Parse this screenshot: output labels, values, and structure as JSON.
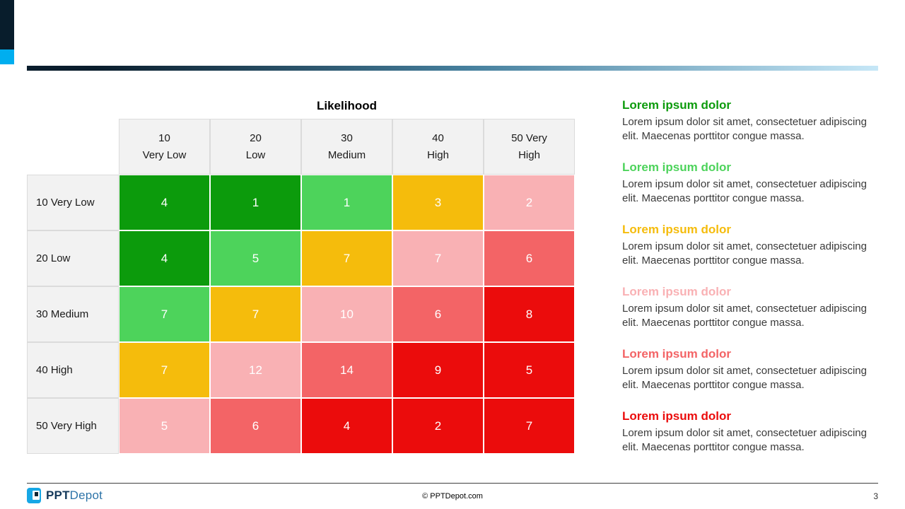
{
  "chart_data": {
    "type": "heatmap",
    "title": "Likelihood",
    "x_categories": [
      "10 Very Low",
      "20 Low",
      "30 Medium",
      "40 High",
      "50 Very High"
    ],
    "y_categories": [
      "10 Very Low",
      "20 Low",
      "30 Medium",
      "40 High",
      "50 Very High"
    ],
    "column_header_lines": [
      [
        "10",
        "Very Low"
      ],
      [
        "20",
        "Low"
      ],
      [
        "30",
        "Medium"
      ],
      [
        "40",
        "High"
      ],
      [
        "50 Very",
        "High"
      ]
    ],
    "values": [
      [
        4,
        1,
        1,
        3,
        2
      ],
      [
        4,
        5,
        7,
        7,
        6
      ],
      [
        7,
        7,
        10,
        6,
        8
      ],
      [
        7,
        12,
        14,
        9,
        5
      ],
      [
        5,
        6,
        4,
        2,
        7
      ]
    ],
    "cell_color_keys": [
      [
        "green_dark",
        "green_dark",
        "green_light",
        "amber",
        "pink_light"
      ],
      [
        "green_dark",
        "green_light",
        "amber",
        "pink_light",
        "salmon"
      ],
      [
        "green_light",
        "amber",
        "pink_light",
        "salmon",
        "red"
      ],
      [
        "amber",
        "pink_light",
        "salmon",
        "red",
        "red"
      ],
      [
        "pink_light",
        "salmon",
        "red",
        "red",
        "red"
      ]
    ],
    "palette": {
      "green_dark": "#0C9B0C",
      "green_light": "#4DD35B",
      "amber": "#F5BC0C",
      "pink_light": "#F9B1B4",
      "salmon": "#F36466",
      "red": "#EB0C0C"
    },
    "legend_position": "right",
    "grid": true
  },
  "sections": [
    {
      "title": "Lorem ipsum dolor",
      "color_key": "green_dark",
      "body": "Lorem ipsum dolor sit amet, consectetuer adipiscing elit. Maecenas porttitor congue massa."
    },
    {
      "title": "Lorem ipsum dolor",
      "color_key": "green_light",
      "body": "Lorem ipsum dolor sit amet, consectetuer adipiscing elit. Maecenas porttitor congue massa."
    },
    {
      "title": "Lorem ipsum dolor",
      "color_key": "amber",
      "body": "Lorem ipsum dolor sit amet, consectetuer adipiscing elit. Maecenas porttitor congue massa."
    },
    {
      "title": "Lorem ipsum dolor",
      "color_key": "pink_light",
      "body": "Lorem ipsum dolor sit amet, consectetuer adipiscing elit. Maecenas porttitor congue massa."
    },
    {
      "title": "Lorem ipsum dolor",
      "color_key": "salmon",
      "body": "Lorem ipsum dolor sit amet, consectetuer adipiscing elit. Maecenas porttitor congue massa."
    },
    {
      "title": "Lorem ipsum dolor",
      "color_key": "red",
      "body": "Lorem ipsum dolor sit amet, consectetuer adipiscing elit. Maecenas porttitor congue massa."
    }
  ],
  "accents": {
    "corner_navy": "#081D2C",
    "corner_cyan": "#00AEEF",
    "gradient_start": "#0A1D2C",
    "gradient_mid": "#46809E",
    "gradient_end": "#C6E7F7",
    "logo_blue": "#17A7E5",
    "brand_bold_color": "#15395B",
    "brand_light_color": "#2E74A8"
  },
  "footer": {
    "brand_bold": "PPT",
    "brand_light": "Depot",
    "copyright": "© PPTDepot.com",
    "page_number": "3"
  }
}
